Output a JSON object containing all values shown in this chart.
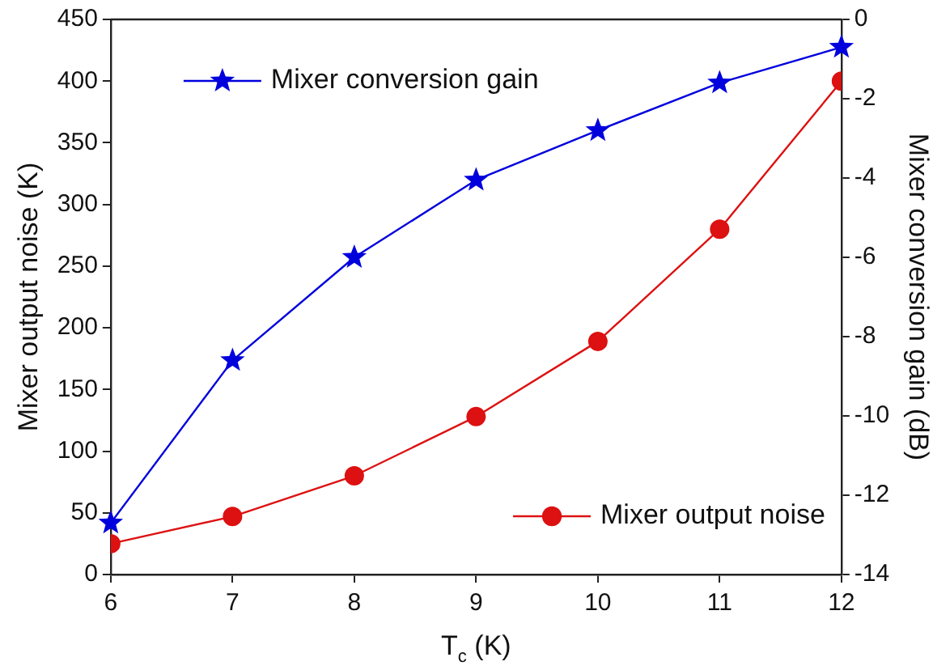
{
  "chart_data": {
    "type": "line",
    "xlabel": "T$_{c}$ (K)",
    "ylabel": "Mixer output noise (K)",
    "y2label": "Mixer conversion gain (dB)",
    "x": [
      6,
      7,
      8,
      9,
      10,
      11,
      12
    ],
    "series": [
      {
        "name": "Mixer conversion gain",
        "color": "#0000dd",
        "axis": "y2",
        "marker": "star",
        "values": [
          -12.7,
          -8.6,
          -6.0,
          -4.05,
          -2.8,
          -1.6,
          -0.7
        ]
      },
      {
        "name": "Mixer output noise",
        "color": "#dd1111",
        "marker": "circle",
        "values": [
          25,
          47,
          80,
          128,
          189,
          280,
          400
        ]
      }
    ],
    "xlim": [
      6,
      12
    ],
    "xticks": [
      6,
      7,
      8,
      9,
      10,
      11,
      12
    ],
    "ylim": [
      0,
      450
    ],
    "yticks": [
      0,
      50,
      100,
      150,
      200,
      250,
      300,
      350,
      400,
      450
    ],
    "y2lim": [
      -14,
      0
    ],
    "y2ticks": [
      -14,
      -12,
      -10,
      -8,
      -6,
      -4,
      -2,
      0
    ],
    "grid": false,
    "legend": "right",
    "line_style": "solid"
  }
}
